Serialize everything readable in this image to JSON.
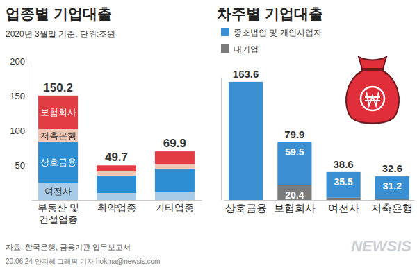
{
  "chart_data": [
    {
      "type": "bar",
      "stacked": true,
      "data_labels": false,
      "title": "업종별 기업대출",
      "subtitle": "2020년 3월말 기준, 단위:조원",
      "categories": [
        "부동산 및\n건설업종",
        "취약업종",
        "기타업종"
      ],
      "series": [
        {
          "name": "여전사",
          "color": "#a8cbe8",
          "values": [
            25,
            10,
            12
          ]
        },
        {
          "name": "상호금융",
          "color": "#2e8ed3",
          "values": [
            59,
            25,
            33
          ]
        },
        {
          "name": "저축은행",
          "color": "#f2c6b6",
          "values": [
            18,
            6,
            7
          ]
        },
        {
          "name": "보험회사",
          "color": "#e23d45",
          "values": [
            48.2,
            8.7,
            17.9
          ]
        }
      ],
      "totals": [
        150.2,
        49.7,
        69.9
      ],
      "ylim": [
        0,
        200
      ],
      "yticks": [
        50,
        100,
        150,
        200
      ]
    },
    {
      "type": "bar",
      "stacked": true,
      "data_labels": true,
      "tick_labels": false,
      "title": "차주별 기업대출",
      "categories": [
        "상호금융",
        "보험회사",
        "여전사",
        "저축은행"
      ],
      "series": [
        {
          "name": "대기업",
          "color": "#7b7b7b",
          "values": [
            0,
            20.4,
            3.1,
            1.4
          ]
        },
        {
          "name": "중소법인 및 개인사업자",
          "color": "#3a8fd3",
          "values": [
            163.6,
            59.5,
            35.5,
            31.2
          ],
          "value_labels": [
            null,
            "59.5",
            "35.5",
            "31.2"
          ]
        }
      ],
      "totals": [
        163.6,
        79.9,
        38.6,
        32.6
      ],
      "ylim": [
        0,
        170
      ],
      "yticks": []
    }
  ],
  "source": "자료: 한국은행, 금융기관 업무보고서",
  "credit": "20.06.24 안지혜 그래픽 기자 hokma@newsis.com",
  "watermark": "NEWSIS"
}
